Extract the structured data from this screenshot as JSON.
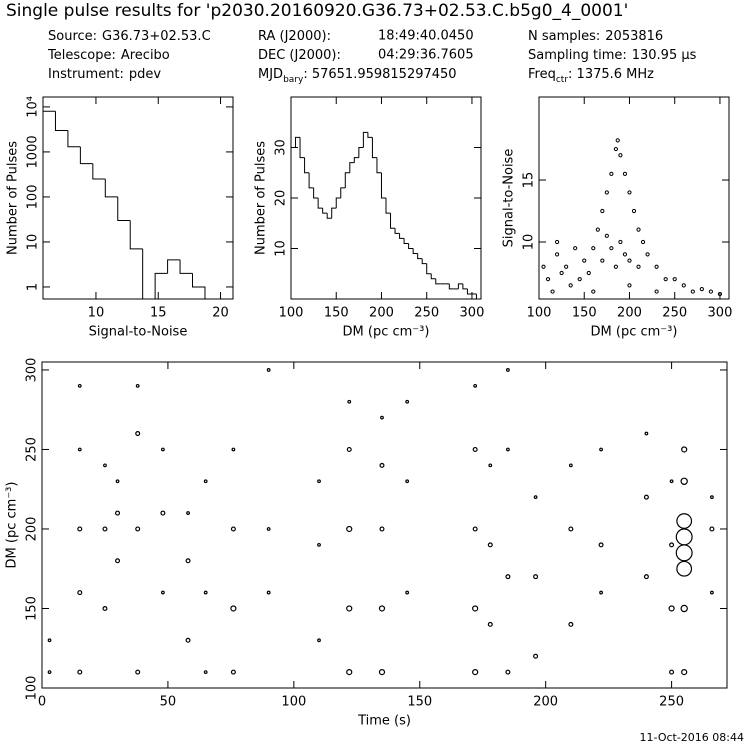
{
  "header": {
    "title": "Single pulse results for 'p2030.20160920.G36.73+02.53.C.b5g0_4_0001'",
    "columns": [
      [
        {
          "label": "Source:",
          "value": "G36.73+02.53.C"
        },
        {
          "label": "Telescope:",
          "value": "Arecibo"
        },
        {
          "label": "Instrument:",
          "value": "pdev"
        }
      ],
      [
        {
          "label": "RA (J2000):",
          "value": "18:49:40.0450"
        },
        {
          "label": "DEC (J2000):",
          "value": "04:29:36.7605"
        },
        {
          "label": "MJD",
          "sub": "bary",
          "value": ": 57651.959815297450"
        }
      ],
      [
        {
          "label": "N samples:",
          "value": "2053816"
        },
        {
          "label": "Sampling time:",
          "value": "130.95 µs"
        },
        {
          "label": "Freq",
          "sub": "ctr",
          "value": ": 1375.6 MHz"
        }
      ]
    ]
  },
  "footer": "11-Oct-2016 08:44",
  "chart_data": [
    {
      "type": "histogram",
      "xlabel": "Signal-to-Noise",
      "ylabel": "Number of Pulses",
      "color": "#000000",
      "bins": [
        5.75,
        6.75,
        7.75,
        8.75,
        9.75,
        10.75,
        11.75,
        12.75,
        13.75,
        14.75,
        15.75,
        16.75,
        17.75,
        18.75
      ],
      "values": [
        8000,
        3000,
        1300,
        550,
        250,
        100,
        30,
        7,
        0,
        2,
        4,
        2,
        1
      ],
      "xlim": [
        5.75,
        21
      ],
      "ylim": [
        0.54,
        16600
      ],
      "log_y": true,
      "xticks": [
        10,
        15,
        20
      ],
      "yticks": [
        1,
        10,
        100,
        1000,
        {
          "value": 10000,
          "label": "10⁴"
        }
      ]
    },
    {
      "type": "histogram",
      "xlabel": "DM (pc cm⁻³)",
      "ylabel": "Number of Pulses",
      "color": "#000000",
      "bins": [
        100,
        105,
        110,
        115,
        120,
        125,
        130,
        135,
        140,
        145,
        150,
        155,
        160,
        165,
        170,
        175,
        180,
        185,
        190,
        195,
        200,
        205,
        210,
        215,
        220,
        225,
        230,
        235,
        240,
        245,
        250,
        255,
        260,
        265,
        270,
        275,
        280,
        285,
        290,
        295,
        300,
        305,
        310
      ],
      "values": [
        30,
        32,
        28,
        25,
        22,
        20,
        18,
        17,
        16,
        18,
        20,
        22,
        25,
        27,
        28,
        30,
        33,
        32,
        28,
        25,
        20,
        17,
        14,
        13,
        12,
        11,
        10,
        9,
        8,
        7,
        5,
        4,
        3,
        3,
        3,
        2,
        2,
        3,
        2,
        1,
        1,
        0
      ],
      "xlim": [
        100,
        310
      ],
      "ylim": [
        0,
        40
      ],
      "xticks": [
        100,
        150,
        200,
        250,
        300
      ],
      "yticks": [
        10,
        20,
        30
      ]
    },
    {
      "type": "scatter",
      "xlabel": "DM (pc cm⁻³)",
      "ylabel": "Signal-to-Noise",
      "color": "#000000",
      "x": [
        150,
        160,
        165,
        170,
        175,
        180,
        185,
        187,
        190,
        195,
        200,
        205,
        210,
        215,
        220,
        230,
        240,
        105,
        110,
        120,
        125,
        130,
        140,
        145,
        155,
        170,
        180,
        190,
        195,
        200,
        210,
        250,
        260,
        270,
        280,
        290,
        300,
        115,
        135,
        160,
        200,
        230,
        120,
        175,
        185
      ],
      "y": [
        8.5,
        9.5,
        11,
        12.5,
        14,
        15.5,
        17.5,
        18.2,
        17,
        15.5,
        14,
        12.5,
        11,
        10,
        9,
        8,
        7,
        8,
        7,
        9,
        7.5,
        8,
        9.5,
        7,
        7.5,
        8.5,
        9.5,
        10,
        9,
        8.5,
        8,
        7,
        6.5,
        6,
        6.2,
        6,
        5.8,
        6,
        6.5,
        6,
        6.5,
        6,
        10,
        10.5,
        8
      ],
      "xlim": [
        100,
        310
      ],
      "ylim": [
        5.4,
        21.7
      ],
      "xticks": [
        100,
        150,
        200,
        250,
        300
      ],
      "yticks": [
        10,
        15
      ]
    },
    {
      "type": "bubble",
      "xlabel": "Time (s)",
      "ylabel": "DM (pc cm⁻³)",
      "color": "#000000",
      "x": [
        3,
        3,
        15,
        15,
        15,
        15,
        15,
        25,
        25,
        25,
        30,
        30,
        30,
        38,
        38,
        38,
        38,
        48,
        48,
        48,
        58,
        58,
        58,
        65,
        65,
        65,
        76,
        76,
        76,
        76,
        90,
        90,
        90,
        110,
        110,
        110,
        122,
        122,
        122,
        122,
        122,
        135,
        135,
        135,
        135,
        135,
        145,
        145,
        145,
        172,
        172,
        172,
        172,
        172,
        178,
        178,
        178,
        185,
        185,
        185,
        185,
        196,
        196,
        196,
        210,
        210,
        210,
        222,
        222,
        222,
        240,
        240,
        240,
        250,
        250,
        250,
        250,
        255,
        255,
        255,
        255,
        255,
        255,
        255,
        255,
        266,
        266,
        266
      ],
      "y": [
        110,
        130,
        110,
        160,
        200,
        250,
        290,
        150,
        200,
        240,
        180,
        210,
        230,
        110,
        200,
        260,
        290,
        160,
        210,
        250,
        130,
        180,
        210,
        110,
        160,
        230,
        110,
        150,
        200,
        250,
        160,
        200,
        300,
        130,
        190,
        230,
        110,
        150,
        200,
        250,
        280,
        110,
        150,
        200,
        240,
        270,
        160,
        230,
        280,
        110,
        150,
        200,
        250,
        290,
        140,
        190,
        240,
        110,
        170,
        250,
        300,
        120,
        170,
        220,
        140,
        200,
        240,
        160,
        190,
        250,
        170,
        220,
        260,
        110,
        150,
        190,
        230,
        110,
        150,
        175,
        185,
        195,
        205,
        230,
        250,
        160,
        200,
        220
      ],
      "sizes": [
        6,
        6,
        7,
        7,
        7,
        6,
        6,
        7,
        7,
        6,
        7,
        7,
        6,
        7,
        7,
        7,
        6,
        6,
        7,
        6,
        7,
        7,
        6,
        6,
        6,
        6,
        7,
        8,
        7,
        6,
        6,
        6,
        6,
        6,
        6,
        6,
        8,
        8,
        8,
        7,
        6,
        8,
        8,
        7,
        7,
        6,
        6,
        6,
        6,
        8,
        8,
        7,
        7,
        6,
        7,
        7,
        6,
        7,
        7,
        6,
        6,
        7,
        7,
        6,
        7,
        7,
        6,
        6,
        7,
        6,
        7,
        7,
        6,
        7,
        8,
        7,
        6,
        8,
        9,
        16,
        17,
        17,
        16,
        9,
        8,
        6,
        7,
        6
      ],
      "xlim": [
        0,
        272
      ],
      "ylim": [
        100,
        305
      ],
      "xticks": [
        0,
        50,
        100,
        150,
        200,
        250
      ],
      "yticks": [
        100,
        150,
        200,
        250,
        300
      ]
    }
  ]
}
